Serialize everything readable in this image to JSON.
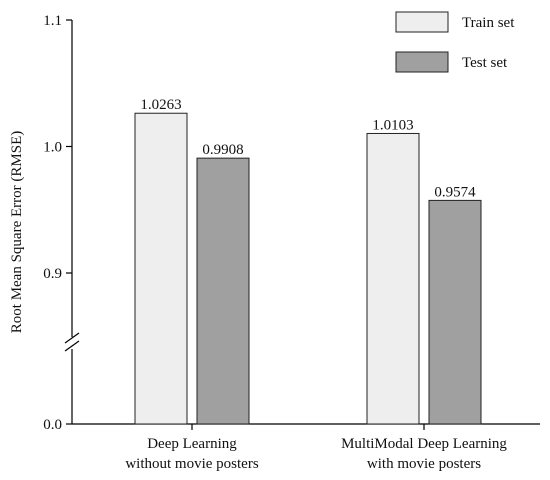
{
  "chart_data": {
    "type": "bar",
    "ylabel": "Root Mean Square Error (RMSE)",
    "yaxis_note": "broken axis between 0.0 and 0.9",
    "yticks": [
      "0.0",
      "0.9",
      "1.0",
      "1.1"
    ],
    "ylim": [
      0.0,
      1.1
    ],
    "categories": [
      [
        "Deep Learning",
        "without movie posters"
      ],
      [
        "MultiModal Deep Learning",
        "with movie posters"
      ]
    ],
    "series": [
      {
        "name": "Train set",
        "values": [
          1.0263,
          1.0103
        ],
        "color": "#eeeeee"
      },
      {
        "name": "Test set",
        "values": [
          0.9908,
          0.9574
        ],
        "color": "#a0a0a0"
      }
    ],
    "data_labels": [
      [
        "1.0263",
        "0.9908"
      ],
      [
        "1.0103",
        "0.9574"
      ]
    ],
    "legend_position": "top-right",
    "grid": false
  }
}
